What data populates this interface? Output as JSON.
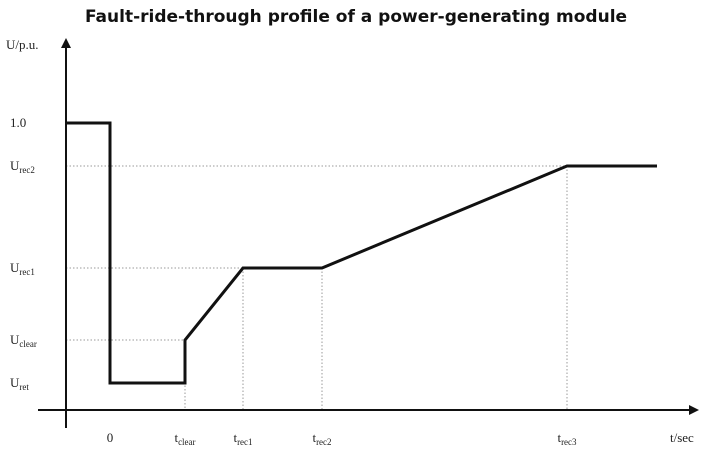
{
  "title": "Fault-ride-through profile of a power-generating module",
  "y_axis_label": "U/p.u.",
  "x_axis_label": "t/sec",
  "y_labels": [
    {
      "base": "1.0"
    },
    {
      "base": "U",
      "sub": "rec2"
    },
    {
      "base": "U",
      "sub": "rec1"
    },
    {
      "base": "U",
      "sub": "clear"
    },
    {
      "base": "U",
      "sub": "ret"
    }
  ],
  "x_labels": [
    {
      "base": "0"
    },
    {
      "base": "t",
      "sub": "clear"
    },
    {
      "base": "t",
      "sub": "rec1"
    },
    {
      "base": "t",
      "sub": "rec2"
    },
    {
      "base": "t",
      "sub": "rec3"
    }
  ]
}
